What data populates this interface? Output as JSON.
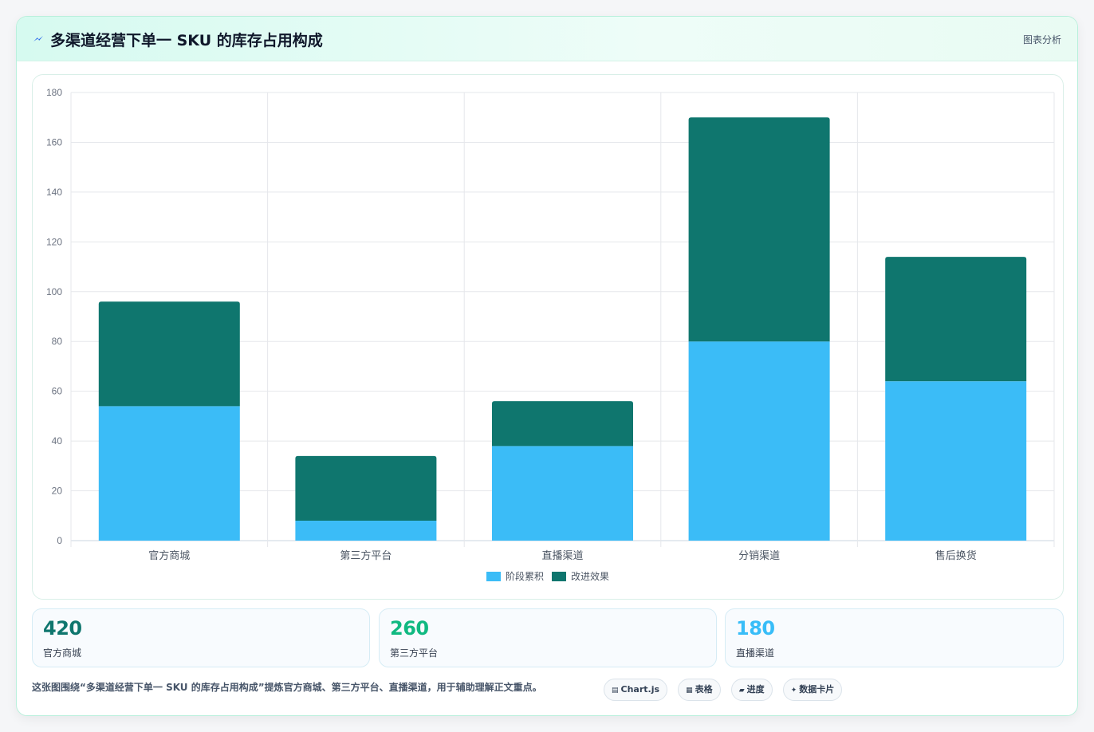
{
  "header": {
    "title": "多渠道经营下单一 SKU 的库存占用构成",
    "tag": "图表分析",
    "icon": "lightning-icon"
  },
  "colors": {
    "series1": "#3bbcf7",
    "series2": "#0f766e",
    "stat1": "#0f766e",
    "stat2": "#10b981",
    "stat3": "#38bdf8"
  },
  "chart_data": {
    "type": "bar",
    "stacked": true,
    "categories": [
      "官方商城",
      "第三方平台",
      "直播渠道",
      "分销渠道",
      "售后换货"
    ],
    "series": [
      {
        "name": "阶段累积",
        "values": [
          54,
          8,
          38,
          80,
          64
        ]
      },
      {
        "name": "改进效果",
        "values": [
          42,
          26,
          18,
          90,
          50
        ]
      }
    ],
    "title": "",
    "xlabel": "",
    "ylabel": "",
    "ylim": [
      0,
      180
    ],
    "yticks": [
      0,
      20,
      40,
      60,
      80,
      100,
      120,
      140,
      160,
      180
    ],
    "grid": true,
    "legend": "bottom-center"
  },
  "stats": [
    {
      "value": "420",
      "label": "官方商城"
    },
    {
      "value": "260",
      "label": "第三方平台"
    },
    {
      "value": "180",
      "label": "直播渠道"
    }
  ],
  "footer": {
    "text": "这张图围绕“多渠道经营下单一 SKU 的库存占用构成”提炼官方商城、第三方平台、直播渠道，用于辅助理解正文重点。",
    "chips": [
      {
        "icon": "▤",
        "label": "Chart.js",
        "icon_name": "chart-icon"
      },
      {
        "icon": "▦",
        "label": "表格",
        "icon_name": "table-icon"
      },
      {
        "icon": "▰",
        "label": "进度",
        "icon_name": "progress-icon"
      },
      {
        "icon": "✦",
        "label": "数据卡片",
        "icon_name": "card-icon"
      }
    ]
  }
}
